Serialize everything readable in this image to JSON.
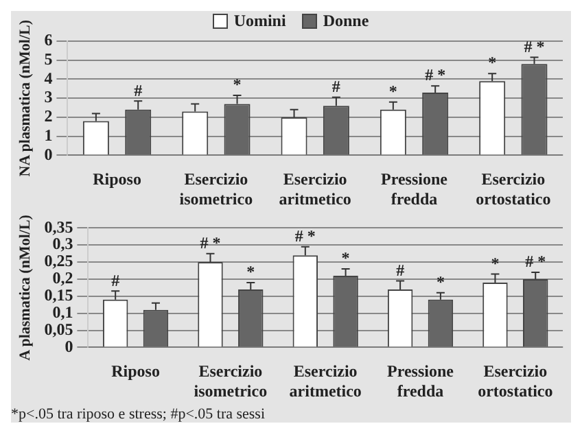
{
  "chart_data": [
    {
      "type": "bar",
      "ylabel": "NA plasmatica (nMol/L)",
      "categories": [
        "Riposo",
        "Esercizio isometrico",
        "Esercizio aritmetico",
        "Pressione fredda",
        "Esercizio ortostatico"
      ],
      "series": [
        {
          "name": "Uomini",
          "color": "#ffffff",
          "values": [
            1.8,
            2.3,
            2.0,
            2.4,
            3.9
          ],
          "errors": [
            [
              1.8,
              2.2
            ],
            [
              2.3,
              2.7
            ],
            [
              2.0,
              2.4
            ],
            [
              2.4,
              2.8
            ],
            [
              3.9,
              4.3
            ]
          ],
          "value_labels": [
            null,
            null,
            null,
            "*",
            "*"
          ]
        },
        {
          "name": "Donne",
          "color": "#666666",
          "values": [
            2.4,
            2.7,
            2.6,
            3.3,
            4.8
          ],
          "errors": [
            [
              2.4,
              2.85
            ],
            [
              2.7,
              3.15
            ],
            [
              2.6,
              3.05
            ],
            [
              3.3,
              3.65
            ],
            [
              4.8,
              5.15
            ]
          ],
          "value_labels": [
            "#",
            "*",
            "#",
            "# *",
            "# *"
          ]
        }
      ],
      "ylim": [
        0,
        6
      ],
      "yticks": [
        0,
        1,
        2,
        3,
        4,
        5,
        6
      ],
      "grid": "y",
      "legend": "top"
    },
    {
      "type": "bar",
      "ylabel": "A plasmatica (nMol/L)",
      "categories": [
        "Riposo",
        "Esercizio isometrico",
        "Esercizio aritmetico",
        "Pressione fredda",
        "Esercizio ortostatico"
      ],
      "series": [
        {
          "color": "#ffffff",
          "values": [
            0.14,
            0.25,
            0.27,
            0.17,
            0.19
          ],
          "errors": [
            [
              0.14,
              0.165
            ],
            [
              0.25,
              0.275
            ],
            [
              0.27,
              0.295
            ],
            [
              0.17,
              0.195
            ],
            [
              0.19,
              0.215
            ]
          ],
          "value_labels": [
            "#",
            "# *",
            "# *",
            "#",
            "*"
          ]
        },
        {
          "color": "#666666",
          "values": [
            0.11,
            0.17,
            0.21,
            0.14,
            0.2
          ],
          "errors": [
            [
              0.11,
              0.13
            ],
            [
              0.17,
              0.19
            ],
            [
              0.21,
              0.23
            ],
            [
              0.14,
              0.16
            ],
            [
              0.2,
              0.22
            ]
          ],
          "value_labels": [
            null,
            "*",
            "*",
            "*",
            "# *"
          ]
        }
      ],
      "ylim": [
        0,
        0.35
      ],
      "yticks": [
        0,
        {
          "value": 0.05,
          "label": "0,05"
        },
        {
          "value": 0.1,
          "label": "0,1"
        },
        {
          "value": 0.15,
          "label": "0,15"
        },
        {
          "value": 0.2,
          "label": "0,2"
        },
        {
          "value": 0.25,
          "label": "0,25"
        },
        {
          "value": 0.3,
          "label": "0,3"
        },
        {
          "value": 0.35,
          "label": "0,35"
        }
      ],
      "grid": "y",
      "annotations": [
        "*p<.05 tra riposo e stress; #p<.05 tra sessi"
      ]
    }
  ]
}
